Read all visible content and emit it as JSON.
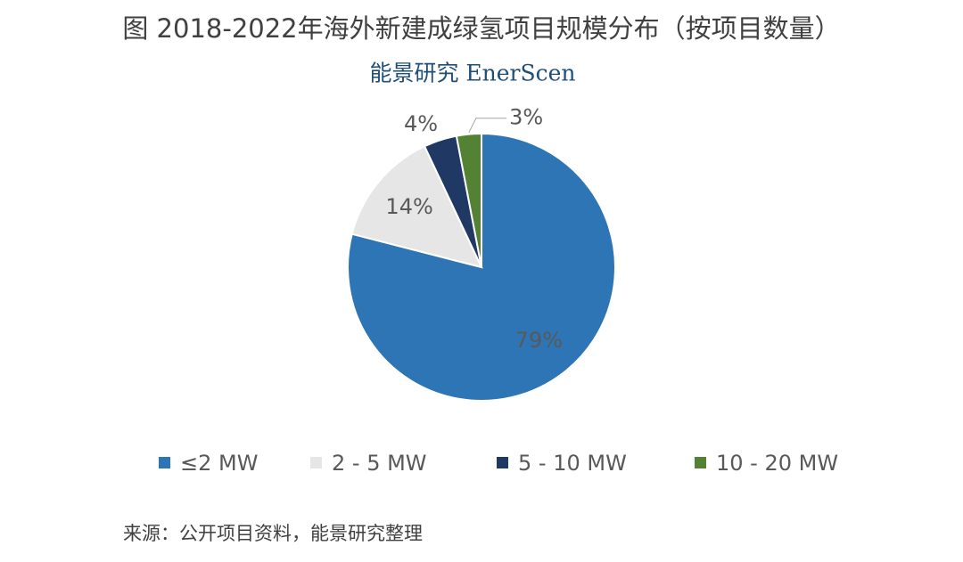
{
  "chart_data": {
    "type": "pie",
    "title": "图 2018-2022年海外新建成绿氢项目规模分布（按项目数量）",
    "subtitle": "能景研究 EnerScen",
    "categories": [
      "≤2 MW",
      "2 - 5 MW",
      "5 - 10 MW",
      "10 - 20 MW"
    ],
    "values": [
      79,
      14,
      4,
      3
    ],
    "value_labels": [
      "79%",
      "14%",
      "4%",
      "3%"
    ],
    "colors": [
      "#2e75b6",
      "#e7e6e6",
      "#1f3864",
      "#548235"
    ],
    "legend": "bottom",
    "source": "来源：公开项目资料，能景研究整理"
  }
}
